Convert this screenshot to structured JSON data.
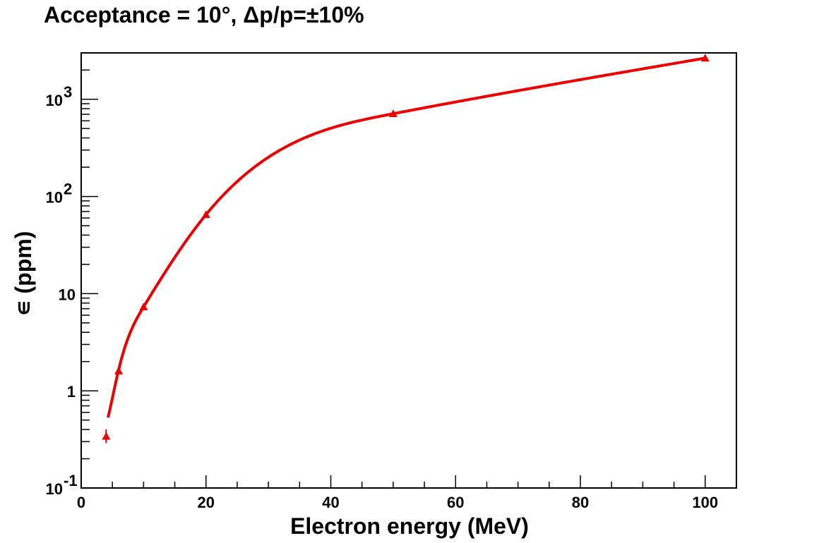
{
  "chart_data": {
    "type": "line",
    "title": "Acceptance = 10°, Δp/p=±10%",
    "xlabel": "Electron energy (MeV)",
    "ylabel": "∊ (ppm)",
    "xlim": [
      0,
      105
    ],
    "ylim": [
      0.1,
      3000
    ],
    "y_scale": "log",
    "grid": false,
    "legend": "none",
    "line_color": "#ee0000",
    "marker": "triangle",
    "x_ticks": [
      0,
      20,
      40,
      60,
      80,
      100
    ],
    "x_tick_labels": [
      "0",
      "20",
      "40",
      "60",
      "80",
      "100"
    ],
    "y_ticks": [
      {
        "value": 0.1,
        "base": "10",
        "exp": "-1"
      },
      {
        "value": 1,
        "base": "1",
        "exp": ""
      },
      {
        "value": 10,
        "base": "10",
        "exp": ""
      },
      {
        "value": 100,
        "base": "10",
        "exp": "2"
      },
      {
        "value": 1000,
        "base": "10",
        "exp": "3"
      }
    ],
    "series": [
      {
        "points": [
          {
            "x": 4,
            "y": 0.34,
            "ylo": 0.29,
            "yhi": 0.4
          },
          {
            "x": 6,
            "y": 1.6,
            "ylo": 1.5,
            "yhi": 1.75
          },
          {
            "x": 10,
            "y": 7.3,
            "ylo": 7.0,
            "yhi": 7.6
          },
          {
            "x": 20,
            "y": 65,
            "ylo": 63,
            "yhi": 67
          },
          {
            "x": 50,
            "y": 710,
            "ylo": 700,
            "yhi": 720
          },
          {
            "x": 100,
            "y": 2650,
            "ylo": 2630,
            "yhi": 2670
          }
        ]
      }
    ]
  }
}
